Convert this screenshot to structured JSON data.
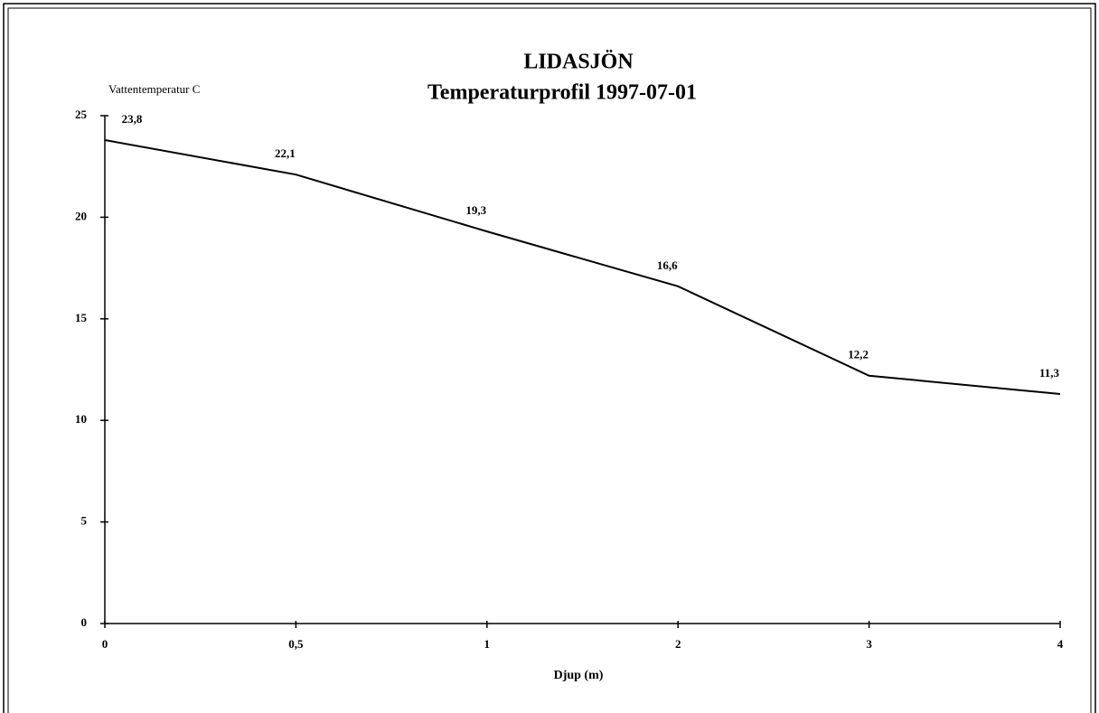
{
  "chart_data": {
    "type": "line",
    "title": "LIDASJÖN",
    "subtitle": "Temperaturprofil 1997-07-01",
    "y_label": "Vattentemperatur C",
    "x_label": "Djup (m)",
    "categories": [
      "0",
      "0,5",
      "1",
      "2",
      "3",
      "4"
    ],
    "values": [
      23.8,
      22.1,
      19.3,
      16.6,
      12.2,
      11.3
    ],
    "value_labels": [
      "23,8",
      "22,1",
      "19,3",
      "16,6",
      "12,2",
      "11,3"
    ],
    "color": "#000000",
    "ylim": [
      0,
      25
    ],
    "yticks": [
      0,
      5,
      10,
      15,
      20,
      25
    ],
    "grid": false
  }
}
